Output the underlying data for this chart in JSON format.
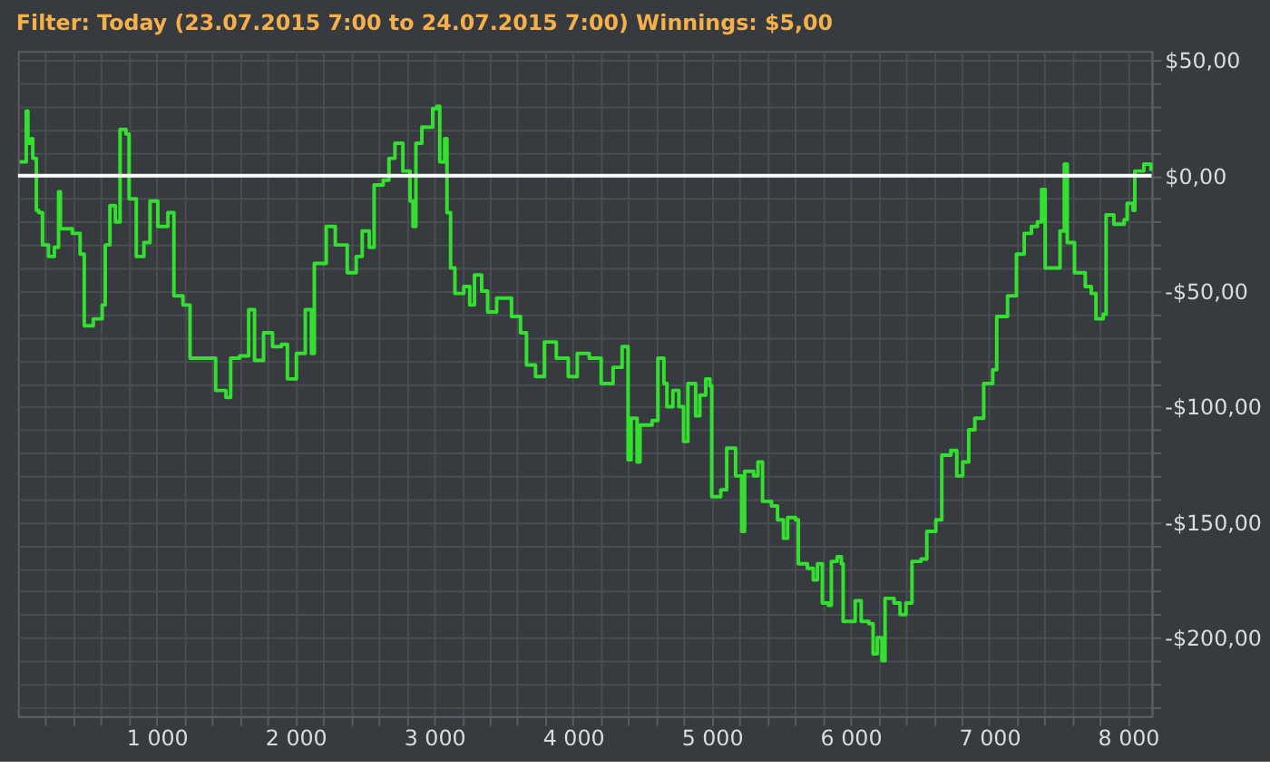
{
  "chart_data": {
    "type": "step",
    "title": "Filter: Today (23.07.2015 7:00 to 24.07.2015 7:00) Winnings: $5,00",
    "x": [
      13,
      60,
      72,
      95,
      107,
      133,
      150,
      177,
      220,
      262,
      293,
      306,
      392,
      448,
      478,
      543,
      607,
      629,
      663,
      702,
      736,
      779,
      801,
      853,
      908,
      952,
      1008,
      1081,
      1124,
      1189,
      1240,
      1340,
      1425,
      1499,
      1533,
      1598,
      1663,
      1705,
      1770,
      1835,
      1899,
      1942,
      2007,
      2071,
      2115,
      2136,
      2222,
      2287,
      2373,
      2438,
      2481,
      2532,
      2567,
      2632,
      2674,
      2717,
      2774,
      2826,
      2847,
      2868,
      2911,
      2963,
      2989,
      3019,
      3040,
      3075,
      3092,
      3118,
      3149,
      3213,
      3256,
      3290,
      3342,
      3385,
      3450,
      3557,
      3622,
      3665,
      3730,
      3794,
      3880,
      3966,
      4031,
      4117,
      4203,
      4289,
      4354,
      4397,
      4419,
      4462,
      4483,
      4570,
      4612,
      4655,
      4677,
      4720,
      4763,
      4797,
      4828,
      4884,
      4914,
      4957,
      4987,
      5000,
      5065,
      5108,
      5172,
      5216,
      5237,
      5302,
      5333,
      5366,
      5431,
      5474,
      5517,
      5547,
      5603,
      5624,
      5689,
      5732,
      5762,
      5797,
      5840,
      5862,
      5904,
      5934,
      5947,
      6021,
      6034,
      6077,
      6133,
      6163,
      6193,
      6227,
      6249,
      6314,
      6357,
      6400,
      6443,
      6508,
      6550,
      6615,
      6658,
      6723,
      6766,
      6809,
      6852,
      6896,
      6960,
      7025,
      7054,
      7132,
      7196,
      7252,
      7304,
      7347,
      7377,
      7403,
      7476,
      7510,
      7541,
      7562,
      7614,
      7692,
      7735,
      7769,
      7821,
      7842,
      7898,
      7972,
      7994,
      8036,
      8049,
      8114,
      8165
    ],
    "series": [
      {
        "color": "#33e02f",
        "values": [
          6,
          28,
          14,
          16,
          7.5,
          -15,
          -16,
          -30,
          -35,
          -31,
          -7,
          -23,
          -25,
          -34,
          -65,
          -62,
          -56,
          -30,
          -13,
          -20,
          20,
          18,
          -10,
          -35,
          -29,
          -11,
          -22,
          -16,
          -52,
          -56,
          -79,
          -79,
          -93,
          -96,
          -79,
          -78,
          -58,
          -80,
          -68,
          -74,
          -73,
          -88,
          -77,
          -58,
          -77,
          -38,
          -22,
          -30,
          -42,
          -35,
          -24,
          -31,
          -4,
          -2,
          7.5,
          14,
          2,
          -11,
          -22,
          14,
          21,
          21,
          29,
          30,
          6,
          16,
          -16,
          -40,
          -51,
          -48,
          -56,
          -43,
          -50,
          -59,
          -53,
          -61,
          -68,
          -82,
          -87,
          -72,
          -79,
          -87,
          -77,
          -79,
          -90,
          -83,
          -74,
          -123,
          -105,
          -124,
          -108,
          -106,
          -79,
          -90,
          -100,
          -93,
          -100,
          -115,
          -90,
          -104,
          -95,
          -88,
          -91,
          -139,
          -136,
          -118,
          -130,
          -154,
          -128,
          -130,
          -124,
          -141,
          -143,
          -149,
          -157,
          -148,
          -149,
          -168,
          -170,
          -175,
          -168,
          -185,
          -186,
          -167,
          -165,
          -168,
          -193,
          -193,
          -184,
          -193,
          -194,
          -207,
          -200,
          -210,
          -183,
          -185,
          -190,
          -185,
          -167,
          -166,
          -154,
          -149,
          -121,
          -119,
          -130,
          -124,
          -110,
          -105,
          -90,
          -84,
          -61,
          -52,
          -34,
          -25,
          -22,
          -20,
          -6,
          -40,
          -40,
          -24,
          5,
          -29,
          -42,
          -48,
          -51,
          -62,
          -60,
          -17,
          -21,
          -19,
          -12,
          -15,
          2,
          5,
          2
        ]
      }
    ],
    "xlim": [
      0,
      8170
    ],
    "ylim": [
      -234,
      54
    ],
    "xticks": [
      {
        "value": 200,
        "label": null
      },
      {
        "value": 400,
        "label": null
      },
      {
        "value": 600,
        "label": null
      },
      {
        "value": 800,
        "label": null
      },
      {
        "value": 1000,
        "label": "1 000"
      },
      {
        "value": 1200,
        "label": null
      },
      {
        "value": 1400,
        "label": null
      },
      {
        "value": 1600,
        "label": null
      },
      {
        "value": 1800,
        "label": null
      },
      {
        "value": 2000,
        "label": "2 000"
      },
      {
        "value": 2200,
        "label": null
      },
      {
        "value": 2400,
        "label": null
      },
      {
        "value": 2600,
        "label": null
      },
      {
        "value": 2800,
        "label": null
      },
      {
        "value": 3000,
        "label": "3 000"
      },
      {
        "value": 3200,
        "label": null
      },
      {
        "value": 3400,
        "label": null
      },
      {
        "value": 3600,
        "label": null
      },
      {
        "value": 3800,
        "label": null
      },
      {
        "value": 4000,
        "label": "4 000"
      },
      {
        "value": 4200,
        "label": null
      },
      {
        "value": 4400,
        "label": null
      },
      {
        "value": 4600,
        "label": null
      },
      {
        "value": 4800,
        "label": null
      },
      {
        "value": 5000,
        "label": "5 000"
      },
      {
        "value": 5200,
        "label": null
      },
      {
        "value": 5400,
        "label": null
      },
      {
        "value": 5600,
        "label": null
      },
      {
        "value": 5800,
        "label": null
      },
      {
        "value": 6000,
        "label": "6 000"
      },
      {
        "value": 6200,
        "label": null
      },
      {
        "value": 6400,
        "label": null
      },
      {
        "value": 6600,
        "label": null
      },
      {
        "value": 6800,
        "label": null
      },
      {
        "value": 7000,
        "label": "7 000"
      },
      {
        "value": 7200,
        "label": null
      },
      {
        "value": 7400,
        "label": null
      },
      {
        "value": 7600,
        "label": null
      },
      {
        "value": 7800,
        "label": null
      },
      {
        "value": 8000,
        "label": "8 000"
      }
    ],
    "yticks": [
      {
        "value": 50,
        "label": "$50,00"
      },
      {
        "value": 40,
        "label": null
      },
      {
        "value": 30,
        "label": null
      },
      {
        "value": 20,
        "label": null
      },
      {
        "value": 10,
        "label": null
      },
      {
        "value": 0,
        "label": "$0,00"
      },
      {
        "value": -10,
        "label": null
      },
      {
        "value": -20,
        "label": null
      },
      {
        "value": -30,
        "label": null
      },
      {
        "value": -40,
        "label": null
      },
      {
        "value": -50,
        "label": "-$50,00"
      },
      {
        "value": -60,
        "label": null
      },
      {
        "value": -70,
        "label": null
      },
      {
        "value": -80,
        "label": null
      },
      {
        "value": -90,
        "label": null
      },
      {
        "value": -100,
        "label": "-$100,00"
      },
      {
        "value": -110,
        "label": null
      },
      {
        "value": -120,
        "label": null
      },
      {
        "value": -130,
        "label": null
      },
      {
        "value": -140,
        "label": null
      },
      {
        "value": -150,
        "label": "-$150,00"
      },
      {
        "value": -160,
        "label": null
      },
      {
        "value": -170,
        "label": null
      },
      {
        "value": -180,
        "label": null
      },
      {
        "value": -190,
        "label": null
      },
      {
        "value": -200,
        "label": "-$200,00"
      },
      {
        "value": -210,
        "label": null
      },
      {
        "value": -220,
        "label": null
      },
      {
        "value": -230,
        "label": null
      }
    ],
    "ref_lines": [
      {
        "axis": "y",
        "value": 0,
        "color": "#ffffff",
        "line_style": "solid"
      }
    ],
    "grid": true,
    "legend": false,
    "marker": "none",
    "line_style": "solid"
  }
}
